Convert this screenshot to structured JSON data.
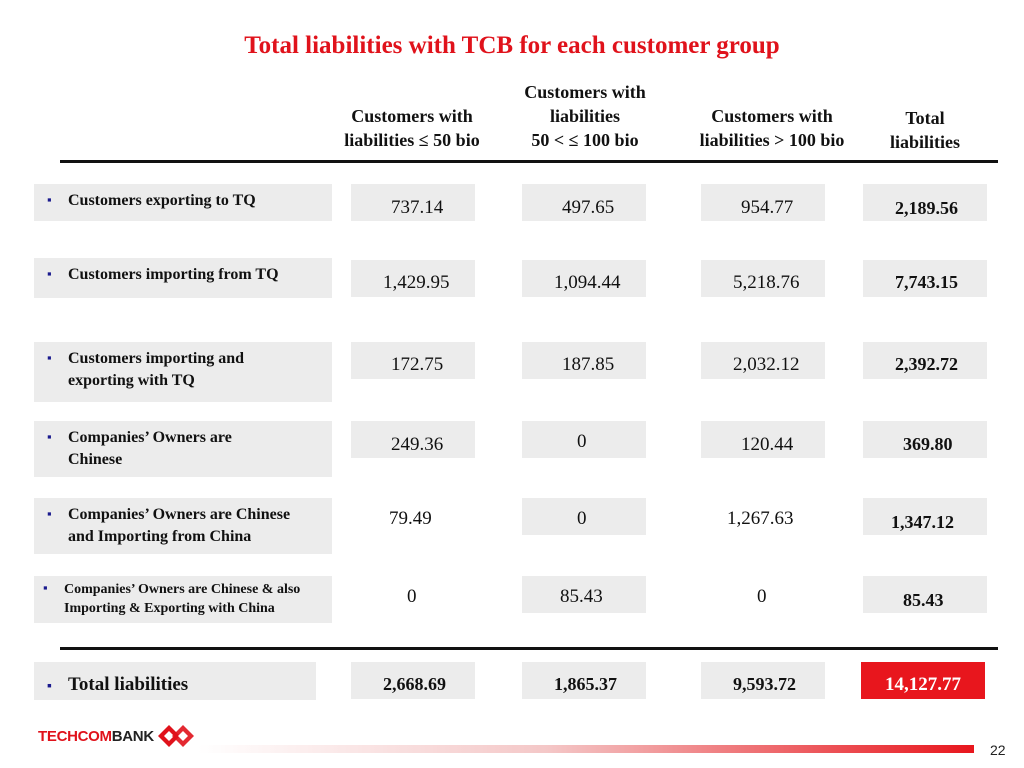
{
  "title": "Total liabilities with TCB for each customer group",
  "headers": {
    "col1": [
      "Customers with",
      "liabilities ≤ 50 bio"
    ],
    "col2": [
      "Customers with",
      "liabilities",
      "50 < ≤ 100 bio"
    ],
    "col3": [
      "Customers with",
      "liabilities > 100 bio"
    ],
    "col4": [
      "Total",
      "liabilities"
    ]
  },
  "rows": [
    {
      "label": [
        "Customers exporting to TQ"
      ],
      "values": [
        "737.14",
        "497.65",
        "954.77",
        "2,189.56"
      ]
    },
    {
      "label": [
        "Customers importing from TQ"
      ],
      "values": [
        "1,429.95",
        "1,094.44",
        "5,218.76",
        "7,743.15"
      ]
    },
    {
      "label": [
        "Customers importing and",
        "exporting with TQ"
      ],
      "values": [
        "172.75",
        "187.85",
        "2,032.12",
        "2,392.72"
      ]
    },
    {
      "label": [
        "Companies’ Owners are",
        "Chinese"
      ],
      "values": [
        "249.36",
        "0",
        "120.44",
        "369.80"
      ]
    },
    {
      "label": [
        "Companies’ Owners are Chinese",
        "and Importing from China"
      ],
      "values": [
        "79.49",
        "0",
        "1,267.63",
        "1,347.12"
      ]
    },
    {
      "label": [
        "Companies’ Owners are Chinese & also",
        "Importing & Exporting with China"
      ],
      "values": [
        "0",
        "85.43",
        "0",
        "85.43"
      ]
    }
  ],
  "total_row": {
    "label": "Total liabilities",
    "values": [
      "2,668.69",
      "1,865.37",
      "9,593.72",
      "14,127.77"
    ]
  },
  "footer": {
    "logo_text_red": "TECHCOM",
    "logo_text_dark": "BANK",
    "page_number": "22"
  },
  "colors": {
    "accent_red": "#e0121b",
    "cell_gray": "#ececec",
    "total_highlight": "#e8161d",
    "bullet": "#1a1a8e"
  },
  "bullet_symbol": "▪"
}
